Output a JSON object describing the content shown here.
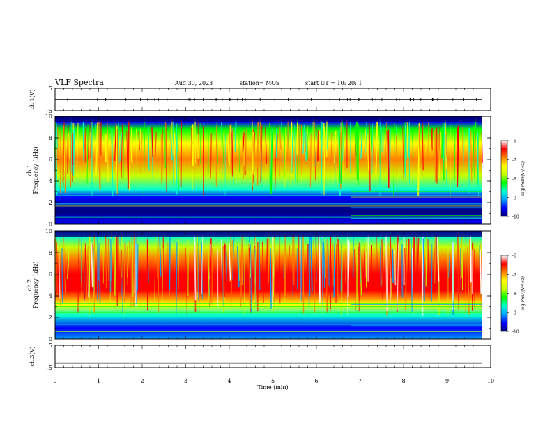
{
  "header": {
    "title": "VLF Spectra",
    "date": "Aug.30, 2023",
    "station": "station= MOS",
    "start": "start  UT  =   10: 20: 1"
  },
  "chart_data": [
    {
      "type": "line",
      "panel": "ch1-voltage",
      "ylabel": "ch.1(V)",
      "ylim": [
        -5,
        5
      ],
      "yticks": [
        "5",
        "-5"
      ],
      "xlim": [
        0,
        10
      ],
      "series": [
        {
          "x": [
            0,
            9.8
          ],
          "y": [
            0,
            0
          ]
        }
      ]
    },
    {
      "type": "heatmap",
      "panel": "ch1-spectrogram",
      "ylabel": "ch.1\nFrequency (kHz)",
      "ylim": [
        0,
        10
      ],
      "yticks": [
        "0",
        "2",
        "4",
        "6",
        "8",
        "10"
      ],
      "xlim": [
        0,
        10
      ],
      "data_end_min": 9.8,
      "colorbar": {
        "label": "log(PSD)(V²/Hz)",
        "range": [
          -10,
          -6
        ],
        "ticks": [
          "-6",
          "-7",
          "-8",
          "-9",
          "-10"
        ]
      }
    },
    {
      "type": "heatmap",
      "panel": "ch2-spectrogram",
      "ylabel": "ch.2\nFrequency (kHz)",
      "ylim": [
        0,
        10
      ],
      "yticks": [
        "0",
        "2",
        "4",
        "6",
        "8",
        "10"
      ],
      "xlim": [
        0,
        10
      ],
      "data_end_min": 9.8,
      "colorbar": {
        "label": "log(PSD)(V²/Hz)",
        "range": [
          -10,
          -6
        ],
        "ticks": [
          "-6",
          "-7",
          "-8",
          "-9",
          "-10"
        ]
      }
    },
    {
      "type": "line",
      "panel": "ch3-voltage",
      "ylabel": "ch.3(V)",
      "ylim": [
        -5,
        5
      ],
      "yticks": [
        "5",
        "-5"
      ],
      "xlim": [
        0,
        10
      ],
      "xticks": [
        "0",
        "1",
        "2",
        "3",
        "4",
        "5",
        "6",
        "7",
        "8",
        "9",
        "10"
      ],
      "xlabel": "Time  (min)",
      "series": [
        {
          "x": [
            0,
            9.8
          ],
          "y": [
            -3,
            -3
          ]
        }
      ]
    }
  ],
  "colors": {
    "colormap": [
      "#00007a",
      "#0000ff",
      "#00a0ff",
      "#00ffd0",
      "#00ff00",
      "#c8ff00",
      "#ffff00",
      "#ff8000",
      "#ff0000",
      "#ffffff"
    ]
  }
}
